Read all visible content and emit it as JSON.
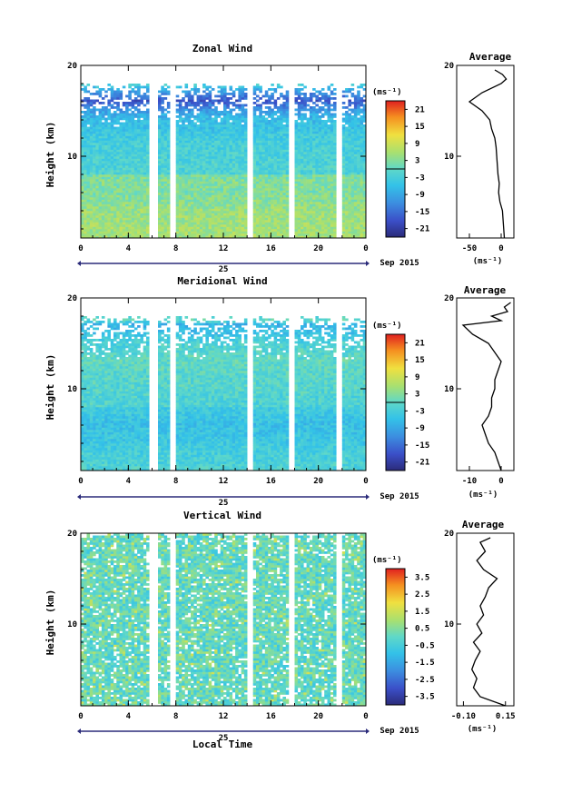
{
  "figure": {
    "time_axis_label": "Local Time",
    "date_label": "25",
    "month_label": "Sep 2015"
  },
  "chart_data": [
    {
      "type": "heatmap",
      "title": "Zonal Wind",
      "ylabel": "Height (km)",
      "xlabel": "Local Time",
      "xlim": [
        0,
        24
      ],
      "ylim": [
        1,
        20
      ],
      "xticks": [
        "0",
        "4",
        "8",
        "12",
        "16",
        "20",
        "0"
      ],
      "yticks": [
        "10",
        "20"
      ],
      "colorbar": {
        "label": "(ms⁻¹)",
        "ticks": [
          "21",
          "15",
          "9",
          "3",
          "-3",
          "-9",
          "-15",
          "-21"
        ],
        "range": [
          -24,
          24
        ]
      },
      "data_gaps_local_time": [
        [
          5.7,
          6.3
        ],
        [
          7.3,
          7.8
        ],
        [
          14.0,
          14.5
        ],
        [
          17.4,
          17.9
        ],
        [
          21.4,
          21.8
        ]
      ],
      "top_of_data_km": [
        17.5,
        18.0
      ],
      "profile": {
        "title": "Average",
        "xticks": [
          "-50",
          "0"
        ],
        "xlim": [
          -70,
          20
        ],
        "xlabel": "(ms⁻¹)",
        "yticks": [
          "10",
          "20"
        ],
        "height_km": [
          1,
          2,
          3,
          4,
          5,
          6,
          7,
          8,
          9,
          10,
          11,
          12,
          13,
          14,
          15,
          16,
          17,
          18,
          18.5,
          19,
          19.5
        ],
        "values": [
          5,
          4,
          3,
          2,
          -2,
          -4,
          -3,
          -5,
          -6,
          -7,
          -8,
          -10,
          -15,
          -18,
          -30,
          -50,
          -30,
          0,
          8,
          2,
          -10
        ]
      }
    },
    {
      "type": "heatmap",
      "title": "Meridional Wind",
      "ylabel": "Height (km)",
      "xlabel": "Local Time",
      "xlim": [
        0,
        24
      ],
      "ylim": [
        1,
        20
      ],
      "xticks": [
        "0",
        "4",
        "8",
        "12",
        "16",
        "20",
        "0"
      ],
      "yticks": [
        "10",
        "20"
      ],
      "colorbar": {
        "label": "(ms⁻¹)",
        "ticks": [
          "21",
          "15",
          "9",
          "3",
          "-3",
          "-9",
          "-15",
          "-21"
        ],
        "range": [
          -24,
          24
        ]
      },
      "data_gaps_local_time": [
        [
          5.7,
          6.3
        ],
        [
          7.3,
          7.8
        ],
        [
          14.0,
          14.5
        ],
        [
          17.4,
          17.9
        ],
        [
          21.4,
          21.8
        ]
      ],
      "top_of_data_km": [
        17.5,
        18.0
      ],
      "profile": {
        "title": "Average",
        "xticks": [
          "-10",
          "0"
        ],
        "xlim": [
          -14,
          4
        ],
        "xlabel": "(ms⁻¹)",
        "yticks": [
          "10",
          "20"
        ],
        "height_km": [
          1,
          2,
          3,
          4,
          5,
          6,
          7,
          8,
          9,
          10,
          11,
          12,
          13,
          14,
          15,
          16,
          17,
          17.5,
          18,
          18.5,
          19,
          19.5
        ],
        "values": [
          0,
          -1,
          -2,
          -4,
          -5,
          -6,
          -4,
          -3,
          -3,
          -2,
          -2,
          -1,
          0,
          -2,
          -4,
          -9,
          -12,
          0,
          -3,
          2,
          1,
          3
        ]
      }
    },
    {
      "type": "heatmap",
      "title": "Vertical Wind",
      "ylabel": "Height (km)",
      "xlabel": "Local Time",
      "xlim": [
        0,
        24
      ],
      "ylim": [
        1,
        20
      ],
      "xticks": [
        "0",
        "4",
        "8",
        "12",
        "16",
        "20",
        "0"
      ],
      "yticks": [
        "10",
        "20"
      ],
      "colorbar": {
        "label": "(ms⁻¹)",
        "ticks": [
          "3.5",
          "2.5",
          "1.5",
          "0.5",
          "-0.5",
          "-1.5",
          "-2.5",
          "-3.5"
        ],
        "range": [
          -4,
          4
        ]
      },
      "data_gaps_local_time": [
        [
          5.7,
          6.3
        ],
        [
          7.3,
          7.8
        ],
        [
          14.0,
          14.5
        ],
        [
          17.4,
          17.9
        ],
        [
          21.4,
          21.8
        ]
      ],
      "top_of_data_km": [
        19.5,
        20.0
      ],
      "profile": {
        "title": "Average",
        "xticks": [
          "-0.10",
          "0.15"
        ],
        "xlim": [
          -0.14,
          0.2
        ],
        "xlabel": "(ms⁻¹)",
        "yticks": [
          "10",
          "20"
        ],
        "height_km": [
          1,
          2,
          3,
          4,
          5,
          6,
          7,
          8,
          9,
          10,
          11,
          12,
          13,
          14,
          15,
          16,
          17,
          18,
          19,
          19.5
        ],
        "values": [
          0.15,
          0.0,
          -0.04,
          -0.02,
          -0.05,
          -0.03,
          0.0,
          -0.04,
          0.01,
          -0.02,
          0.02,
          0.0,
          0.03,
          0.05,
          0.1,
          0.02,
          -0.02,
          0.03,
          0.0,
          0.06
        ]
      }
    }
  ]
}
